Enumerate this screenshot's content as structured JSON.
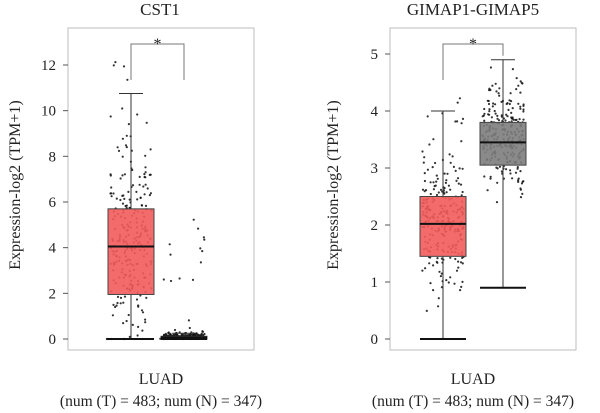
{
  "chart_data": [
    {
      "type": "box",
      "title": "CST1",
      "ylabel": "Expression-log2 (TPM+1)",
      "ylim": [
        0,
        13.5
      ],
      "yticks": [
        0,
        2,
        4,
        6,
        8,
        10,
        12
      ],
      "category": "LUAD",
      "footnote": "(num (T) = 483; num (N) = 347)",
      "significance": "*",
      "series": [
        {
          "group": "T",
          "color": "#f25b5b",
          "n": 483,
          "min": 0,
          "q1": 1.95,
          "median": 4.05,
          "q3": 5.7,
          "max": 10.75,
          "outlier_max": 12.4
        },
        {
          "group": "N",
          "color": "#7d7d7d",
          "n": 347,
          "min": 0,
          "q1": 0.0,
          "median": 0.07,
          "q3": 0.12,
          "max": 0.25,
          "outlier_max": 5.3
        }
      ]
    },
    {
      "type": "box",
      "title": "GIMAP1-GIMAP5",
      "ylabel": "Expression-log2 (TPM+1)",
      "ylim": [
        0,
        5.25
      ],
      "yticks": [
        0,
        1,
        2,
        3,
        4,
        5
      ],
      "category": "LUAD",
      "footnote": "(num (T) = 483; num (N) = 347)",
      "significance": "*",
      "series": [
        {
          "group": "T",
          "color": "#f25b5b",
          "n": 483,
          "min": 0,
          "q1": 1.45,
          "median": 2.02,
          "q3": 2.5,
          "max": 4.0,
          "outlier_max": 4.3
        },
        {
          "group": "N",
          "color": "#7d7d7d",
          "n": 347,
          "min": 0.9,
          "q1": 3.05,
          "median": 3.45,
          "q3": 3.8,
          "max": 4.9,
          "outlier_max": 4.9
        }
      ]
    }
  ]
}
